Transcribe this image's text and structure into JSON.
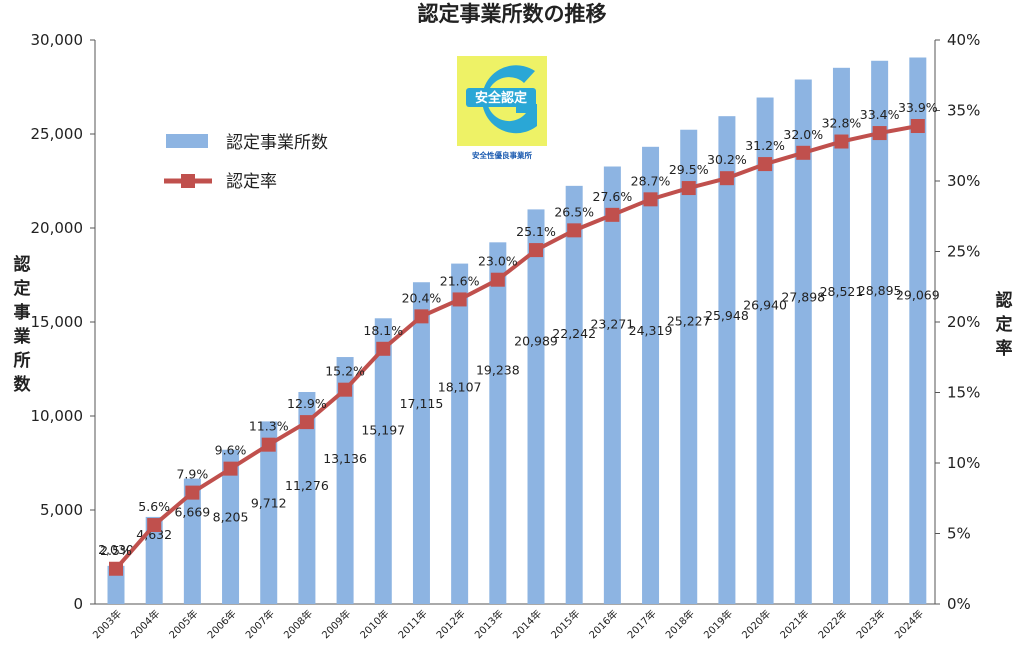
{
  "chart_data": {
    "type": "bar",
    "title": "認定事業所数の推移",
    "categories": [
      "2003年",
      "2004年",
      "2005年",
      "2006年",
      "2007年",
      "2008年",
      "2009年",
      "2010年",
      "2011年",
      "2012年",
      "2013年",
      "2014年",
      "2015年",
      "2016年",
      "2017年",
      "2018年",
      "2019年",
      "2020年",
      "2021年",
      "2022年",
      "2023年",
      "2024年"
    ],
    "series": [
      {
        "name": "認定事業所数",
        "type": "bar",
        "axis": "left",
        "color": "#8db4e2",
        "values": [
          2030,
          4632,
          6669,
          8205,
          9712,
          11276,
          13136,
          15197,
          17115,
          18107,
          19238,
          20989,
          22242,
          23271,
          24319,
          25227,
          25948,
          26940,
          27898,
          28521,
          28895,
          29069
        ],
        "labels": [
          "2,030",
          "4,632",
          "6,669",
          "8,205",
          "9,712",
          "11,276",
          "13,136",
          "15,197",
          "17,115",
          "18,107",
          "19,238",
          "20,989",
          "22,242",
          "23,271",
          "24,319",
          "25,227",
          "25,948",
          "26,940",
          "27,898",
          "28,521",
          "28,895",
          "29,069"
        ]
      },
      {
        "name": "認定率",
        "type": "line",
        "axis": "right",
        "color": "#c0504d",
        "values": [
          2.5,
          5.6,
          7.9,
          9.6,
          11.3,
          12.9,
          15.2,
          18.1,
          20.4,
          21.6,
          23.0,
          25.1,
          26.5,
          27.6,
          28.7,
          29.5,
          30.2,
          31.2,
          32.0,
          32.8,
          33.4,
          33.9
        ],
        "labels": [
          "2.5%",
          "5.6%",
          "7.9%",
          "9.6%",
          "11.3%",
          "12.9%",
          "15.2%",
          "18.1%",
          "20.4%",
          "21.6%",
          "23.0%",
          "25.1%",
          "26.5%",
          "27.6%",
          "28.7%",
          "29.5%",
          "30.2%",
          "31.2%",
          "32.0%",
          "32.8%",
          "33.4%",
          "33.9%"
        ]
      }
    ],
    "ylabel": "認定事業所数",
    "y2label": "認定率",
    "ylim": [
      0,
      30000
    ],
    "y2lim": [
      0,
      40
    ],
    "yticks": [
      "0",
      "5,000",
      "10,000",
      "15,000",
      "20,000",
      "25,000",
      "30,000"
    ],
    "y2ticks": [
      "0%",
      "5%",
      "10%",
      "15%",
      "20%",
      "25%",
      "30%",
      "35%",
      "40%"
    ],
    "grid": false,
    "legend_position": "top-left"
  },
  "logo": {
    "main_text": "安全認定",
    "sub_text": "安全性優良事業所",
    "colors": {
      "background": "#eef266",
      "ring": "#2aa7d6"
    }
  }
}
